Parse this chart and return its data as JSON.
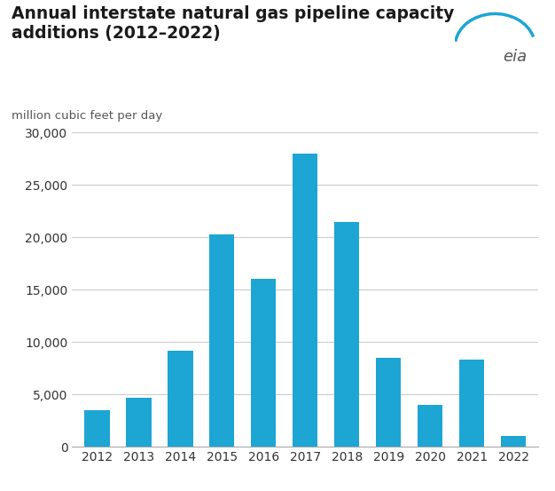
{
  "title_line1": "Annual interstate natural gas pipeline capacity",
  "title_line2": "additions (2012–2022)",
  "subtitle": "million cubic feet per day",
  "years": [
    2012,
    2013,
    2014,
    2015,
    2016,
    2017,
    2018,
    2019,
    2020,
    2021,
    2022
  ],
  "values": [
    3500,
    4700,
    9200,
    20300,
    16000,
    28000,
    21500,
    8500,
    4000,
    8300,
    1000
  ],
  "bar_color": "#1da5d4",
  "background_color": "#ffffff",
  "ylim": [
    0,
    30000
  ],
  "yticks": [
    0,
    5000,
    10000,
    15000,
    20000,
    25000,
    30000
  ],
  "grid_color": "#cccccc",
  "eia_text": "eia",
  "title_fontsize": 13.5,
  "subtitle_fontsize": 9.5,
  "tick_fontsize": 10,
  "bar_width": 0.6,
  "eia_color": "#555555",
  "eia_arc_color": "#1da5d4"
}
